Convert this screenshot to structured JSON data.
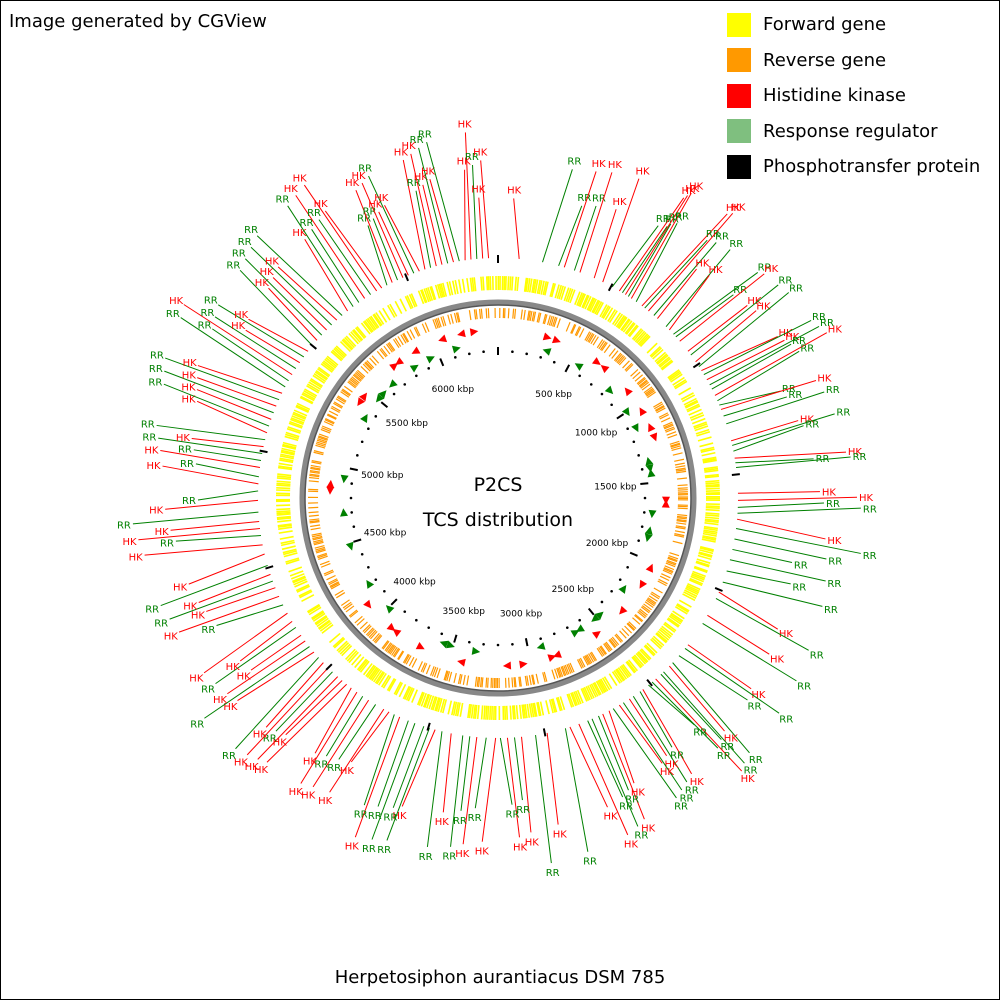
{
  "credit": "Image generated by CGView",
  "legend": [
    {
      "label": "Forward gene",
      "color": "#ffff00",
      "icon": "forward-gene-swatch"
    },
    {
      "label": "Reverse gene",
      "color": "#ff9900",
      "icon": "reverse-gene-swatch"
    },
    {
      "label": "Histidine kinase",
      "color": "#ff0000",
      "icon": "histidine-kinase-swatch"
    },
    {
      "label": "Response regulator",
      "color": "#7fbf7f",
      "icon": "response-regulator-swatch"
    },
    {
      "label": "Phosphotransfer protein",
      "color": "#000000",
      "icon": "phosphotransfer-protein-swatch"
    }
  ],
  "center": {
    "line1": "P2CS",
    "line2": "TCS distribution"
  },
  "footer": "Herpetosiphon aurantiacus DSM 785",
  "map": {
    "genome_length_kbp": 6400,
    "ruler_labels": [
      "500 kbp",
      "1000 kbp",
      "1500 kbp",
      "2000 kbp",
      "2500 kbp",
      "3000 kbp",
      "3500 kbp",
      "4000 kbp",
      "4500 kbp",
      "5000 kbp",
      "5500 kbp",
      "6000 kbp"
    ],
    "ruler_positions_kbp": [
      500,
      1000,
      1500,
      2000,
      2500,
      3000,
      3500,
      4000,
      4500,
      5000,
      5500,
      6000
    ],
    "features": [
      {
        "label": "HK",
        "pos_kbp": 90
      },
      {
        "label": "RR",
        "pos_kbp": 190
      },
      {
        "label": "RR",
        "pos_kbp": 260
      },
      {
        "label": "HK",
        "pos_kbp": 285
      },
      {
        "label": "RR",
        "pos_kbp": 330
      },
      {
        "label": "HK",
        "pos_kbp": 355
      },
      {
        "label": "HK",
        "pos_kbp": 420
      },
      {
        "label": "HK",
        "pos_kbp": 460
      },
      {
        "label": "RR",
        "pos_kbp": 505
      },
      {
        "label": "HK",
        "pos_kbp": 540
      },
      {
        "label": "RR",
        "pos_kbp": 555
      },
      {
        "label": "HK",
        "pos_kbp": 570
      },
      {
        "label": "RR",
        "pos_kbp": 585
      },
      {
        "label": "HK",
        "pos_kbp": 600
      },
      {
        "label": "RR",
        "pos_kbp": 625
      },
      {
        "label": "HK",
        "pos_kbp": 655
      },
      {
        "label": "RR",
        "pos_kbp": 670
      },
      {
        "label": "HK",
        "pos_kbp": 690
      },
      {
        "label": "RR",
        "pos_kbp": 720
      },
      {
        "label": "HK",
        "pos_kbp": 740
      },
      {
        "label": "RR",
        "pos_kbp": 790
      },
      {
        "label": "HK",
        "pos_kbp": 810
      },
      {
        "label": "RR",
        "pos_kbp": 835
      },
      {
        "label": "RR",
        "pos_kbp": 850
      },
      {
        "label": "HK",
        "pos_kbp": 875
      },
      {
        "label": "HK",
        "pos_kbp": 930
      },
      {
        "label": "RR",
        "pos_kbp": 950
      },
      {
        "label": "HK",
        "pos_kbp": 985
      },
      {
        "label": "RR",
        "pos_kbp": 1010
      },
      {
        "label": "HK",
        "pos_kbp": 1030
      },
      {
        "label": "RR",
        "pos_kbp": 1050
      },
      {
        "label": "HK",
        "pos_kbp": 1075
      },
      {
        "label": "RR",
        "pos_kbp": 1100
      },
      {
        "label": "RR",
        "pos_kbp": 1120
      },
      {
        "label": "HK",
        "pos_kbp": 1150
      },
      {
        "label": "RR",
        "pos_kbp": 1175
      },
      {
        "label": "RR",
        "pos_kbp": 1195
      },
      {
        "label": "HK",
        "pos_kbp": 1215
      },
      {
        "label": "RR",
        "pos_kbp": 1245
      },
      {
        "label": "RR",
        "pos_kbp": 1280
      },
      {
        "label": "HK",
        "pos_kbp": 1355
      },
      {
        "label": "RR",
        "pos_kbp": 1375
      },
      {
        "label": "RR",
        "pos_kbp": 1400
      },
      {
        "label": "HK",
        "pos_kbp": 1430
      },
      {
        "label": "RR",
        "pos_kbp": 1450
      },
      {
        "label": "RR",
        "pos_kbp": 1470
      },
      {
        "label": "HK",
        "pos_kbp": 1580
      },
      {
        "label": "HK",
        "pos_kbp": 1610
      },
      {
        "label": "RR",
        "pos_kbp": 1640
      },
      {
        "label": "RR",
        "pos_kbp": 1665
      },
      {
        "label": "HK",
        "pos_kbp": 1690
      },
      {
        "label": "RR",
        "pos_kbp": 1730
      },
      {
        "label": "RR",
        "pos_kbp": 1775
      },
      {
        "label": "RR",
        "pos_kbp": 1820
      },
      {
        "label": "RR",
        "pos_kbp": 1865
      },
      {
        "label": "RR",
        "pos_kbp": 1915
      },
      {
        "label": "RR",
        "pos_kbp": 1965
      },
      {
        "label": "HK",
        "pos_kbp": 2010
      },
      {
        "label": "RR",
        "pos_kbp": 2040
      },
      {
        "label": "HK",
        "pos_kbp": 2120
      },
      {
        "label": "RR",
        "pos_kbp": 2160
      },
      {
        "label": "HK",
        "pos_kbp": 2270
      },
      {
        "label": "RR",
        "pos_kbp": 2290
      },
      {
        "label": "RR",
        "pos_kbp": 2330
      },
      {
        "label": "RR",
        "pos_kbp": 2370
      },
      {
        "label": "HK",
        "pos_kbp": 2390
      },
      {
        "label": "RR",
        "pos_kbp": 2425
      },
      {
        "label": "RR",
        "pos_kbp": 2440
      },
      {
        "label": "HK",
        "pos_kbp": 2470
      },
      {
        "label": "RR",
        "pos_kbp": 2490
      },
      {
        "label": "RR",
        "pos_kbp": 2510
      },
      {
        "label": "HK",
        "pos_kbp": 2540
      },
      {
        "label": "RR",
        "pos_kbp": 2555
      },
      {
        "label": "RR",
        "pos_kbp": 2590
      },
      {
        "label": "HK",
        "pos_kbp": 2610
      },
      {
        "label": "RR",
        "pos_kbp": 2640
      },
      {
        "label": "HK",
        "pos_kbp": 2660
      },
      {
        "label": "RR",
        "pos_kbp": 2690
      },
      {
        "label": "HK",
        "pos_kbp": 2710
      },
      {
        "label": "HK",
        "pos_kbp": 2740
      },
      {
        "label": "RR",
        "pos_kbp": 2760
      },
      {
        "label": "RR",
        "pos_kbp": 2790
      },
      {
        "label": "RR",
        "pos_kbp": 2810
      },
      {
        "label": "HK",
        "pos_kbp": 2850
      },
      {
        "label": "HK",
        "pos_kbp": 2890
      },
      {
        "label": "RR",
        "pos_kbp": 2910
      },
      {
        "label": "HK",
        "pos_kbp": 2990
      },
      {
        "label": "RR",
        "pos_kbp": 3040
      },
      {
        "label": "HK",
        "pos_kbp": 3100
      },
      {
        "label": "RR",
        "pos_kbp": 3130
      },
      {
        "label": "HK",
        "pos_kbp": 3160
      },
      {
        "label": "RR",
        "pos_kbp": 3190
      },
      {
        "label": "HK",
        "pos_kbp": 3210
      },
      {
        "label": "RR",
        "pos_kbp": 3250
      },
      {
        "label": "HK",
        "pos_kbp": 3290
      },
      {
        "label": "RR",
        "pos_kbp": 3320
      },
      {
        "label": "RR",
        "pos_kbp": 3350
      },
      {
        "label": "HK",
        "pos_kbp": 3400
      },
      {
        "label": "RR",
        "pos_kbp": 3440
      },
      {
        "label": "HK",
        "pos_kbp": 3470
      },
      {
        "label": "RR",
        "pos_kbp": 3495
      },
      {
        "label": "RR",
        "pos_kbp": 3520
      },
      {
        "label": "RR",
        "pos_kbp": 3560
      },
      {
        "label": "RR",
        "pos_kbp": 3590
      },
      {
        "label": "HK",
        "pos_kbp": 3630
      },
      {
        "label": "RR",
        "pos_kbp": 3655
      },
      {
        "label": "HK",
        "pos_kbp": 3680
      },
      {
        "label": "HK",
        "pos_kbp": 3705
      },
      {
        "label": "RR",
        "pos_kbp": 3745
      },
      {
        "label": "HK",
        "pos_kbp": 3780
      },
      {
        "label": "RR",
        "pos_kbp": 3810
      },
      {
        "label": "HK",
        "pos_kbp": 3840
      },
      {
        "label": "HK",
        "pos_kbp": 3870
      },
      {
        "label": "HK",
        "pos_kbp": 3895
      },
      {
        "label": "HK",
        "pos_kbp": 3920
      },
      {
        "label": "HK",
        "pos_kbp": 3945
      },
      {
        "label": "RR",
        "pos_kbp": 3975
      },
      {
        "label": "HK",
        "pos_kbp": 4000
      },
      {
        "label": "HK",
        "pos_kbp": 4030
      },
      {
        "label": "RR",
        "pos_kbp": 4060
      },
      {
        "label": "HK",
        "pos_kbp": 4090
      },
      {
        "label": "RR",
        "pos_kbp": 4120
      },
      {
        "label": "HK",
        "pos_kbp": 4150
      },
      {
        "label": "HK",
        "pos_kbp": 4180
      },
      {
        "label": "RR",
        "pos_kbp": 4220
      },
      {
        "label": "HK",
        "pos_kbp": 4250
      },
      {
        "label": "HK",
        "pos_kbp": 4290
      },
      {
        "label": "RR",
        "pos_kbp": 4330
      },
      {
        "label": "HK",
        "pos_kbp": 4370
      },
      {
        "label": "HK",
        "pos_kbp": 4410
      },
      {
        "label": "RR",
        "pos_kbp": 4440
      },
      {
        "label": "HK",
        "pos_kbp": 4470
      },
      {
        "label": "RR",
        "pos_kbp": 4510
      },
      {
        "label": "HK",
        "pos_kbp": 4560
      },
      {
        "label": "HK",
        "pos_kbp": 4600
      },
      {
        "label": "RR",
        "pos_kbp": 4640
      },
      {
        "label": "HK",
        "pos_kbp": 4670
      },
      {
        "label": "HK",
        "pos_kbp": 4700
      },
      {
        "label": "RR",
        "pos_kbp": 4740
      },
      {
        "label": "HK",
        "pos_kbp": 4790
      },
      {
        "label": "RR",
        "pos_kbp": 4830
      },
      {
        "label": "HK",
        "pos_kbp": 4860
      },
      {
        "label": "RR",
        "pos_kbp": 4890
      },
      {
        "label": "HK",
        "pos_kbp": 4930
      },
      {
        "label": "RR",
        "pos_kbp": 4960
      },
      {
        "label": "RR",
        "pos_kbp": 4990
      },
      {
        "label": "HK",
        "pos_kbp": 5020
      },
      {
        "label": "RR",
        "pos_kbp": 5050
      },
      {
        "label": "HK",
        "pos_kbp": 5080
      },
      {
        "label": "RR",
        "pos_kbp": 5110
      },
      {
        "label": "HK",
        "pos_kbp": 5140
      },
      {
        "label": "RR",
        "pos_kbp": 5170
      },
      {
        "label": "HK",
        "pos_kbp": 5200
      },
      {
        "label": "RR",
        "pos_kbp": 5230
      },
      {
        "label": "HK",
        "pos_kbp": 5260
      },
      {
        "label": "RR",
        "pos_kbp": 5290
      },
      {
        "label": "RR",
        "pos_kbp": 5320
      },
      {
        "label": "HK",
        "pos_kbp": 5350
      },
      {
        "label": "RR",
        "pos_kbp": 5380
      },
      {
        "label": "HK",
        "pos_kbp": 5410
      },
      {
        "label": "RR",
        "pos_kbp": 5440
      },
      {
        "label": "HK",
        "pos_kbp": 5470
      },
      {
        "label": "RR",
        "pos_kbp": 5500
      },
      {
        "label": "HK",
        "pos_kbp": 5530
      },
      {
        "label": "RR",
        "pos_kbp": 5560
      },
      {
        "label": "HK",
        "pos_kbp": 5590
      },
      {
        "label": "RR",
        "pos_kbp": 5620
      },
      {
        "label": "HK",
        "pos_kbp": 5650
      },
      {
        "label": "RR",
        "pos_kbp": 5680
      },
      {
        "label": "HK",
        "pos_kbp": 5710
      },
      {
        "label": "RR",
        "pos_kbp": 5740
      },
      {
        "label": "RR",
        "pos_kbp": 5770
      },
      {
        "label": "HK",
        "pos_kbp": 5800
      },
      {
        "label": "RR",
        "pos_kbp": 5830
      },
      {
        "label": "HK",
        "pos_kbp": 5860
      },
      {
        "label": "HK",
        "pos_kbp": 5885
      },
      {
        "label": "RR",
        "pos_kbp": 5910
      },
      {
        "label": "HK",
        "pos_kbp": 5935
      },
      {
        "label": "RR",
        "pos_kbp": 5960
      },
      {
        "label": "HK",
        "pos_kbp": 5985
      },
      {
        "label": "HK",
        "pos_kbp": 6010
      },
      {
        "label": "RR",
        "pos_kbp": 6035
      },
      {
        "label": "HK",
        "pos_kbp": 6060
      },
      {
        "label": "HK",
        "pos_kbp": 6085
      },
      {
        "label": "RR",
        "pos_kbp": 6110
      },
      {
        "label": "HK",
        "pos_kbp": 6135
      },
      {
        "label": "HK",
        "pos_kbp": 6160
      },
      {
        "label": "RR",
        "pos_kbp": 6185
      },
      {
        "label": "HK",
        "pos_kbp": 6210
      },
      {
        "label": "RR",
        "pos_kbp": 6235
      },
      {
        "label": "HK",
        "pos_kbp": 6260
      },
      {
        "label": "HK",
        "pos_kbp": 6285
      },
      {
        "label": "RR",
        "pos_kbp": 6310
      },
      {
        "label": "HK",
        "pos_kbp": 6335
      },
      {
        "label": "HK",
        "pos_kbp": 6360
      }
    ],
    "tcs_markers_kbp": [
      {
        "type": "HK",
        "pos": 300
      },
      {
        "type": "RR",
        "pos": 330
      },
      {
        "type": "HK",
        "pos": 360
      },
      {
        "type": "RR",
        "pos": 560
      },
      {
        "type": "HK",
        "pos": 640
      },
      {
        "type": "HK",
        "pos": 700
      },
      {
        "type": "RR",
        "pos": 820
      },
      {
        "type": "HK",
        "pos": 900
      },
      {
        "type": "RR",
        "pos": 1000
      },
      {
        "type": "HK",
        "pos": 1050
      },
      {
        "type": "RR",
        "pos": 1120
      },
      {
        "type": "HK",
        "pos": 1160
      },
      {
        "type": "HK",
        "pos": 1220
      },
      {
        "type": "RR",
        "pos": 1360
      },
      {
        "type": "RR",
        "pos": 1400
      },
      {
        "type": "RR",
        "pos": 1440
      },
      {
        "type": "HK",
        "pos": 1610
      },
      {
        "type": "HK",
        "pos": 1640
      },
      {
        "type": "RR",
        "pos": 1700
      },
      {
        "type": "RR",
        "pos": 1820
      },
      {
        "type": "RR",
        "pos": 1860
      },
      {
        "type": "HK",
        "pos": 2040
      },
      {
        "type": "HK",
        "pos": 2150
      },
      {
        "type": "RR",
        "pos": 2240
      },
      {
        "type": "HK",
        "pos": 2350
      },
      {
        "type": "RR",
        "pos": 2470
      },
      {
        "type": "RR",
        "pos": 2510
      },
      {
        "type": "HK",
        "pos": 2560
      },
      {
        "type": "RR",
        "pos": 2630
      },
      {
        "type": "RR",
        "pos": 2670
      },
      {
        "type": "HK",
        "pos": 2830
      },
      {
        "type": "HK",
        "pos": 2870
      },
      {
        "type": "RR",
        "pos": 2910
      },
      {
        "type": "HK",
        "pos": 3050
      },
      {
        "type": "HK",
        "pos": 3140
      },
      {
        "type": "RR",
        "pos": 3350
      },
      {
        "type": "HK",
        "pos": 3420
      },
      {
        "type": "RR",
        "pos": 3520
      },
      {
        "type": "RR",
        "pos": 3560
      },
      {
        "type": "HK",
        "pos": 3690
      },
      {
        "type": "HK",
        "pos": 3860
      },
      {
        "type": "HK",
        "pos": 3900
      },
      {
        "type": "RR",
        "pos": 3990
      },
      {
        "type": "HK",
        "pos": 4100
      },
      {
        "type": "RR",
        "pos": 4200
      },
      {
        "type": "RR",
        "pos": 4480
      },
      {
        "type": "RR",
        "pos": 4700
      },
      {
        "type": "HK",
        "pos": 4850
      },
      {
        "type": "HK",
        "pos": 4880
      },
      {
        "type": "RR",
        "pos": 4930
      },
      {
        "type": "RR",
        "pos": 5350
      },
      {
        "type": "HK",
        "pos": 5420
      },
      {
        "type": "HK",
        "pos": 5460
      },
      {
        "type": "RR",
        "pos": 5510
      },
      {
        "type": "RR",
        "pos": 5550
      },
      {
        "type": "RR",
        "pos": 5640
      },
      {
        "type": "HK",
        "pos": 5720
      },
      {
        "type": "HK",
        "pos": 5760
      },
      {
        "type": "RR",
        "pos": 5820
      },
      {
        "type": "HK",
        "pos": 5880
      },
      {
        "type": "RR",
        "pos": 5940
      },
      {
        "type": "HK",
        "pos": 6060
      },
      {
        "type": "RR",
        "pos": 6120
      },
      {
        "type": "HK",
        "pos": 6180
      },
      {
        "type": "HK",
        "pos": 6250
      }
    ]
  }
}
